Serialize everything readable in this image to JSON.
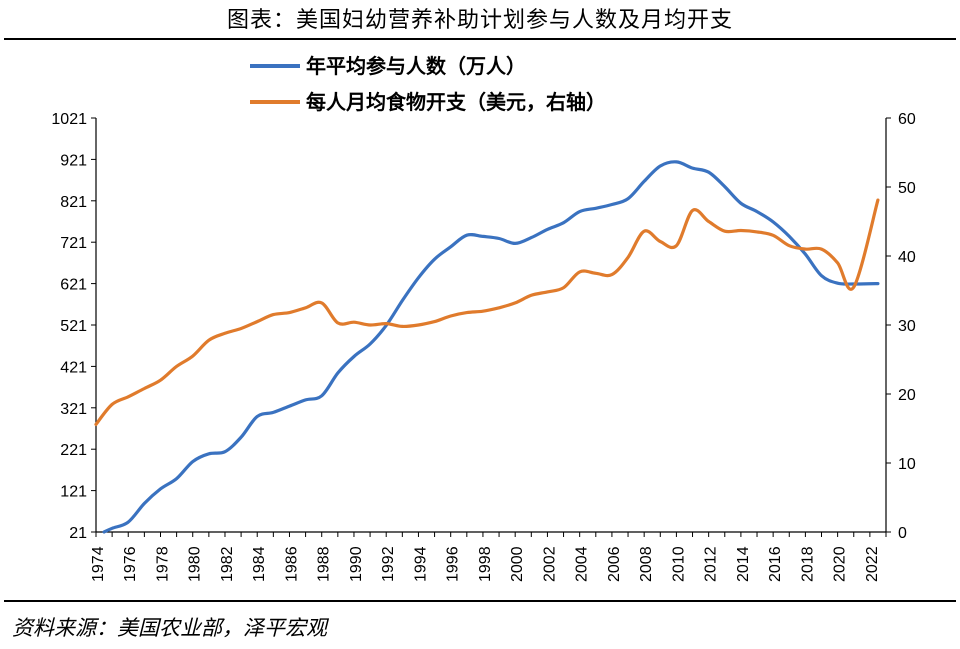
{
  "title": "图表：美国妇幼营养补助计划参与人数及月均开支",
  "source": "资料来源：美国农业部，泽平宏观",
  "chart_data": {
    "type": "line",
    "legend_position": "top-center",
    "x_ticks": [
      "1974",
      "1976",
      "1978",
      "1980",
      "1982",
      "1984",
      "1986",
      "1988",
      "1990",
      "1992",
      "1994",
      "1996",
      "1998",
      "2000",
      "2002",
      "2004",
      "2006",
      "2008",
      "2010",
      "2012",
      "2014",
      "2016",
      "2018",
      "2020",
      "2022"
    ],
    "xlim": [
      1974,
      2023
    ],
    "y_left": {
      "lim": [
        21,
        1021
      ],
      "ticks": [
        "21",
        "121",
        "221",
        "321",
        "421",
        "521",
        "621",
        "721",
        "821",
        "921",
        "1021"
      ]
    },
    "y_right": {
      "lim": [
        0,
        60
      ],
      "ticks": [
        "0",
        "10",
        "20",
        "30",
        "40",
        "50",
        "60"
      ]
    },
    "series": [
      {
        "name": "年平均参与人数（万人）",
        "axis": "left",
        "color": "#3a72c0",
        "x": [
          1974.5,
          1975,
          1976,
          1977,
          1978,
          1979,
          1980,
          1981,
          1982,
          1983,
          1984,
          1985,
          1986,
          1987,
          1988,
          1989,
          1990,
          1991,
          1992,
          1993,
          1994,
          1995,
          1996,
          1997,
          1998,
          1999,
          2000,
          2001,
          2002,
          2003,
          2004,
          2005,
          2006,
          2007,
          2008,
          2009,
          2010,
          2011,
          2012,
          2013,
          2014,
          2015,
          2016,
          2017,
          2018,
          2019,
          2020,
          2021,
          2022.5
        ],
        "values": [
          21,
          30,
          45,
          90,
          125,
          150,
          191,
          210,
          215,
          250,
          300,
          310,
          325,
          340,
          350,
          405,
          445,
          475,
          520,
          580,
          635,
          680,
          710,
          738,
          735,
          730,
          718,
          732,
          752,
          768,
          795,
          803,
          812,
          826,
          868,
          905,
          915,
          900,
          890,
          855,
          815,
          795,
          770,
          735,
          692,
          640,
          622,
          620,
          621
        ]
      },
      {
        "name": "每人月均食物开支（美元，右轴）",
        "axis": "right",
        "color": "#e07b2c",
        "x": [
          1974,
          1975,
          1976,
          1977,
          1978,
          1979,
          1980,
          1981,
          1982,
          1983,
          1984,
          1985,
          1986,
          1987,
          1988,
          1989,
          1990,
          1991,
          1992,
          1993,
          1994,
          1995,
          1996,
          1997,
          1998,
          1999,
          2000,
          2001,
          2002,
          2003,
          2004,
          2005,
          2006,
          2007,
          2008,
          2009,
          2010,
          2011,
          2012,
          2013,
          2014,
          2015,
          2016,
          2017,
          2018,
          2019,
          2020,
          2021,
          2022.5
        ],
        "values": [
          15.6,
          18.5,
          19.6,
          20.8,
          22.0,
          24.0,
          25.5,
          27.8,
          28.8,
          29.5,
          30.5,
          31.5,
          31.8,
          32.5,
          33.2,
          30.3,
          30.4,
          30.0,
          30.2,
          29.8,
          30.0,
          30.5,
          31.3,
          31.8,
          32.0,
          32.5,
          33.2,
          34.3,
          34.8,
          35.4,
          37.7,
          37.5,
          37.3,
          39.8,
          43.6,
          42.1,
          41.5,
          46.6,
          45.0,
          43.6,
          43.7,
          43.5,
          43.0,
          41.5,
          41.0,
          41.0,
          39.0,
          35.5,
          48.1
        ]
      }
    ]
  }
}
